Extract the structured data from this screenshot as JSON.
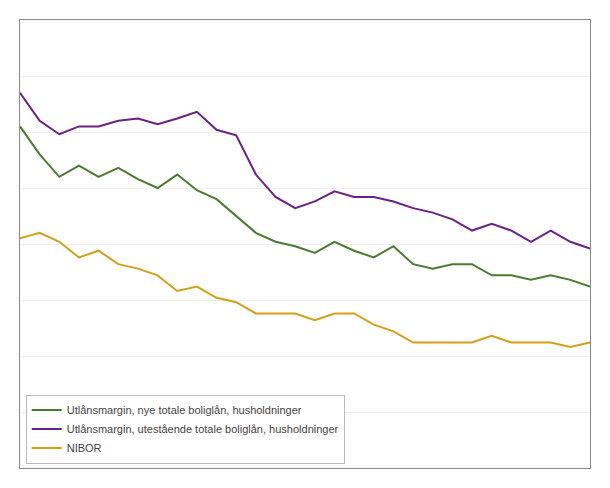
{
  "chart_data": {
    "type": "line",
    "x": [
      0,
      1,
      2,
      3,
      4,
      5,
      6,
      7,
      8,
      9,
      10,
      11,
      12,
      13,
      14,
      15,
      16,
      17,
      18,
      19,
      20,
      21,
      22,
      23,
      24,
      25,
      26,
      27,
      28,
      29
    ],
    "series": [
      {
        "name": "Utlånsmargin, nye totale boliglån, husholdninger",
        "color": "#4a7c2f",
        "values": [
          2.55,
          2.3,
          2.1,
          2.2,
          2.1,
          2.18,
          2.08,
          2.0,
          2.12,
          1.98,
          1.9,
          1.75,
          1.6,
          1.52,
          1.48,
          1.42,
          1.52,
          1.44,
          1.38,
          1.48,
          1.32,
          1.28,
          1.32,
          1.32,
          1.22,
          1.22,
          1.18,
          1.22,
          1.18,
          1.12
        ]
      },
      {
        "name": "Utlånsmargin, utestående totale boliglån, husholdninger",
        "color": "#6a1f8a",
        "values": [
          2.85,
          2.6,
          2.48,
          2.55,
          2.55,
          2.6,
          2.62,
          2.57,
          2.62,
          2.68,
          2.52,
          2.47,
          2.12,
          1.92,
          1.82,
          1.88,
          1.97,
          1.92,
          1.92,
          1.88,
          1.82,
          1.78,
          1.72,
          1.62,
          1.68,
          1.62,
          1.52,
          1.62,
          1.52,
          1.46
        ]
      },
      {
        "name": "NIBOR",
        "color": "#d4a017",
        "values": [
          1.55,
          1.6,
          1.52,
          1.38,
          1.44,
          1.32,
          1.28,
          1.22,
          1.08,
          1.12,
          1.02,
          0.98,
          0.88,
          0.88,
          0.88,
          0.82,
          0.88,
          0.88,
          0.78,
          0.72,
          0.62,
          0.62,
          0.62,
          0.62,
          0.68,
          0.62,
          0.62,
          0.62,
          0.58,
          0.62
        ]
      }
    ],
    "xlim": [
      0,
      29
    ],
    "xticks": [],
    "ylim": [
      -0.5,
      3.5
    ],
    "yticks": [
      0,
      0.5,
      1.0,
      1.5,
      2.0,
      2.5,
      3.0,
      3.5
    ],
    "tick_labels": false,
    "grid": true,
    "legend": "lower left"
  }
}
